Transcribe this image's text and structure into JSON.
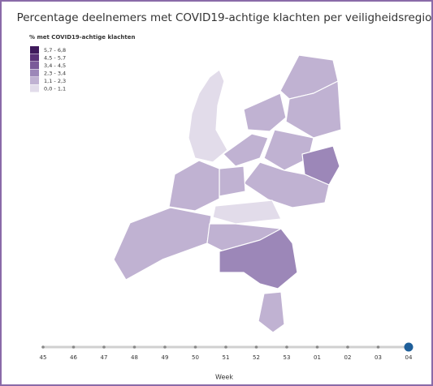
{
  "title": "Percentage deelnemers met COVID19-achtige klachten per veiligheidsregio",
  "legend": {
    "title": "% met COVID19-achtige klachten",
    "items": [
      {
        "label": "5,7 - 6,8",
        "color": "#3f1a5c"
      },
      {
        "label": "4,5 - 5,7",
        "color": "#5a3278"
      },
      {
        "label": "3,4 - 4,5",
        "color": "#7a5a99"
      },
      {
        "label": "2,3 - 3,4",
        "color": "#9c87b8"
      },
      {
        "label": "1,1 - 2,3",
        "color": "#c0b2d2"
      },
      {
        "label": "0,0 - 1,1",
        "color": "#e2dcea"
      }
    ]
  },
  "timeline": {
    "weeks": [
      "45",
      "46",
      "47",
      "48",
      "49",
      "50",
      "51",
      "52",
      "53",
      "01",
      "02",
      "03",
      "04"
    ],
    "selected": "04",
    "axis_label": "Week"
  }
}
